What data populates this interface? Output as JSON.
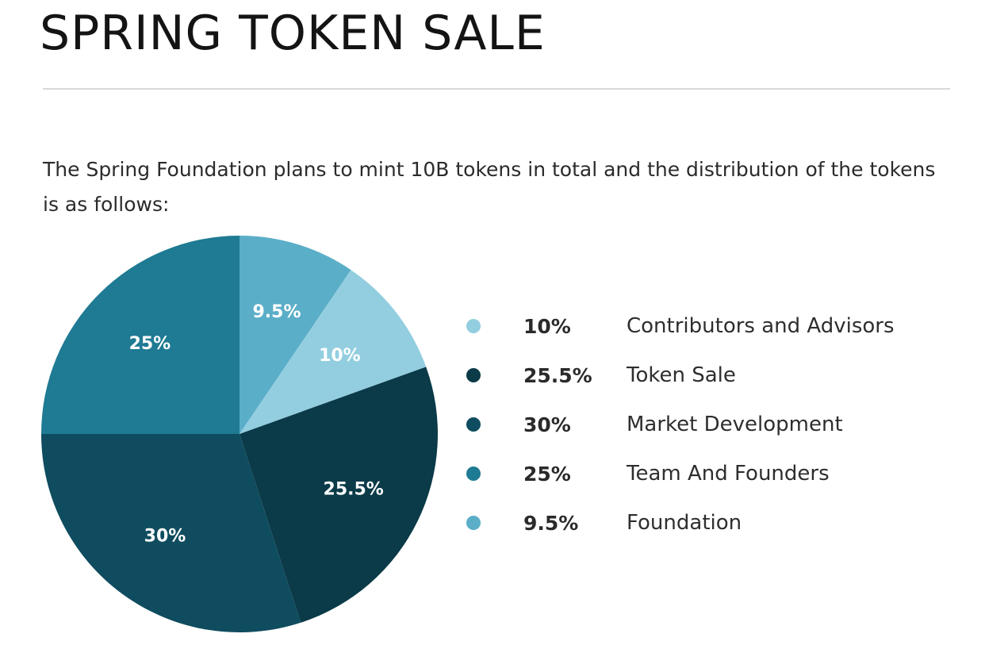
{
  "header": {
    "title": "SPRING TOKEN SALE"
  },
  "intro": {
    "text": "The Spring Foundation plans to mint 10B tokens in total and the distribution of the tokens is as follows:"
  },
  "chart_data": {
    "type": "pie",
    "title": "",
    "unit": "%",
    "start_angle_deg": 0,
    "direction": "clockwise",
    "slices": [
      {
        "label": "Contributors and Advisors",
        "value": 10,
        "display": "10%",
        "color": "#93CEE0"
      },
      {
        "label": "Token Sale",
        "value": 25.5,
        "display": "25.5%",
        "color": "#0B3A48"
      },
      {
        "label": "Market Development",
        "value": 30,
        "display": "30%",
        "color": "#0F4C5F"
      },
      {
        "label": "Team And Founders",
        "value": 25,
        "display": "25%",
        "color": "#1F7A93"
      },
      {
        "label": "Foundation",
        "value": 9.5,
        "display": "9.5%",
        "color": "#5BAEC8"
      }
    ],
    "pie_order": [
      4,
      0,
      1,
      2,
      3
    ],
    "legend_position": "right"
  }
}
